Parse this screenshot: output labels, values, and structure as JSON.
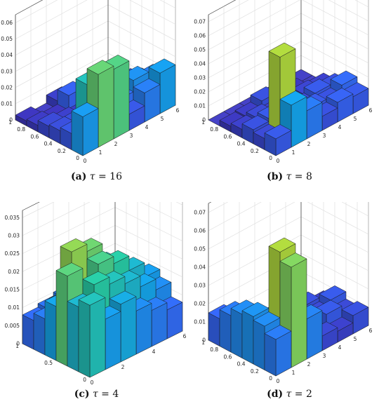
{
  "chart_data": [
    {
      "type": "bar3d",
      "caption": {
        "tag": "(a)",
        "symbol": "τ",
        "rest": " = 16"
      },
      "zticks": [
        "0",
        "0.01",
        "0.02",
        "0.03",
        "0.04",
        "0.05",
        "0.06"
      ],
      "zlim": [
        0,
        0.065
      ],
      "yticks": [
        "0",
        "0.2",
        "0.4",
        "0.6",
        "0.8",
        "1"
      ],
      "xticks": [
        "0",
        "1",
        "2",
        "3",
        "4",
        "5",
        "6"
      ],
      "bars": [
        {
          "i": 1,
          "j": 1,
          "v": 0.024
        },
        {
          "i": 1,
          "j": 2,
          "v": 0.01
        },
        {
          "i": 1,
          "j": 3,
          "v": 0.008
        },
        {
          "i": 1,
          "j": 4,
          "v": 0.007
        },
        {
          "i": 1,
          "j": 5,
          "v": 0.004
        },
        {
          "i": 1,
          "j": 6,
          "v": 0.003
        },
        {
          "i": 2,
          "j": 1,
          "v": 0.045
        },
        {
          "i": 2,
          "j": 2,
          "v": 0.035
        },
        {
          "i": 2,
          "j": 3,
          "v": 0.008
        },
        {
          "i": 2,
          "j": 4,
          "v": 0.005
        },
        {
          "i": 2,
          "j": 5,
          "v": 0.003
        },
        {
          "i": 3,
          "j": 1,
          "v": 0.043
        },
        {
          "i": 3,
          "j": 2,
          "v": 0.03
        },
        {
          "i": 3,
          "j": 3,
          "v": 0.006
        },
        {
          "i": 3,
          "j": 4,
          "v": 0.004
        },
        {
          "i": 3,
          "j": 5,
          "v": 0.012
        },
        {
          "i": 3,
          "j": 6,
          "v": 0.005
        },
        {
          "i": 4,
          "j": 1,
          "v": 0.01
        },
        {
          "i": 4,
          "j": 2,
          "v": 0.015
        },
        {
          "i": 4,
          "j": 3,
          "v": 0.007
        },
        {
          "i": 4,
          "j": 4,
          "v": 0.003
        },
        {
          "i": 4,
          "j": 5,
          "v": 0.009
        },
        {
          "i": 5,
          "j": 1,
          "v": 0.018
        },
        {
          "i": 5,
          "j": 2,
          "v": 0.022
        },
        {
          "i": 5,
          "j": 3,
          "v": 0.014
        },
        {
          "i": 5,
          "j": 4,
          "v": 0.006
        },
        {
          "i": 5,
          "j": 5,
          "v": 0.01
        },
        {
          "i": 6,
          "j": 1,
          "v": 0.025
        },
        {
          "i": 6,
          "j": 2,
          "v": 0.018
        },
        {
          "i": 6,
          "j": 3,
          "v": 0.012
        },
        {
          "i": 6,
          "j": 4,
          "v": 0.008
        },
        {
          "i": 6,
          "j": 5,
          "v": 0.005
        },
        {
          "i": 6,
          "j": 6,
          "v": 0.004
        }
      ]
    },
    {
      "type": "bar3d",
      "caption": {
        "tag": "(b)",
        "symbol": "τ",
        "rest": " = 8"
      },
      "zticks": [
        "0",
        "0.01",
        "0.02",
        "0.03",
        "0.04",
        "0.05",
        "0.06",
        "0.07"
      ],
      "zlim": [
        0,
        0.075
      ],
      "yticks": [
        "0",
        "0.2",
        "0.4",
        "0.6",
        "0.8",
        "1"
      ],
      "xticks": [
        "0",
        "1",
        "2",
        "3",
        "4",
        "5",
        "6"
      ],
      "bars": [
        {
          "i": 1,
          "j": 1,
          "v": 0.012
        },
        {
          "i": 1,
          "j": 2,
          "v": 0.008
        },
        {
          "i": 1,
          "j": 3,
          "v": 0.01
        },
        {
          "i": 1,
          "j": 4,
          "v": 0.006
        },
        {
          "i": 1,
          "j": 5,
          "v": 0.004
        },
        {
          "i": 2,
          "j": 1,
          "v": 0.03
        },
        {
          "i": 2,
          "j": 2,
          "v": 0.06
        },
        {
          "i": 2,
          "j": 3,
          "v": 0.012
        },
        {
          "i": 2,
          "j": 4,
          "v": 0.008
        },
        {
          "i": 2,
          "j": 5,
          "v": 0.005
        },
        {
          "i": 3,
          "j": 1,
          "v": 0.02
        },
        {
          "i": 3,
          "j": 2,
          "v": 0.015
        },
        {
          "i": 3,
          "j": 3,
          "v": 0.008
        },
        {
          "i": 3,
          "j": 4,
          "v": 0.006
        },
        {
          "i": 3,
          "j": 5,
          "v": 0.01
        },
        {
          "i": 4,
          "j": 1,
          "v": 0.01
        },
        {
          "i": 4,
          "j": 2,
          "v": 0.012
        },
        {
          "i": 4,
          "j": 3,
          "v": 0.008
        },
        {
          "i": 4,
          "j": 4,
          "v": 0.005
        },
        {
          "i": 5,
          "j": 1,
          "v": 0.014
        },
        {
          "i": 5,
          "j": 2,
          "v": 0.01
        },
        {
          "i": 5,
          "j": 3,
          "v": 0.012
        },
        {
          "i": 5,
          "j": 4,
          "v": 0.007
        },
        {
          "i": 5,
          "j": 5,
          "v": 0.004
        },
        {
          "i": 6,
          "j": 1,
          "v": 0.012
        },
        {
          "i": 6,
          "j": 2,
          "v": 0.016
        },
        {
          "i": 6,
          "j": 3,
          "v": 0.01
        },
        {
          "i": 6,
          "j": 4,
          "v": 0.006
        }
      ]
    },
    {
      "type": "bar3d",
      "caption": {
        "tag": "(c)",
        "symbol": "τ",
        "rest": " = 4"
      },
      "zticks": [
        "0",
        "0.005",
        "0.01",
        "0.015",
        "0.02",
        "0.025",
        "0.03",
        "0.035"
      ],
      "zlim": [
        0,
        0.037
      ],
      "yticks": [
        "0",
        "0.5",
        "1"
      ],
      "xticks": [
        "0",
        "2",
        "4",
        "6"
      ],
      "bars": [
        {
          "i": 1,
          "j": 1,
          "v": 0.02
        },
        {
          "i": 1,
          "j": 2,
          "v": 0.018
        },
        {
          "i": 1,
          "j": 3,
          "v": 0.025
        },
        {
          "i": 1,
          "j": 4,
          "v": 0.015
        },
        {
          "i": 1,
          "j": 5,
          "v": 0.01
        },
        {
          "i": 1,
          "j": 6,
          "v": 0.008
        },
        {
          "i": 2,
          "j": 1,
          "v": 0.014
        },
        {
          "i": 2,
          "j": 2,
          "v": 0.022
        },
        {
          "i": 2,
          "j": 3,
          "v": 0.018
        },
        {
          "i": 2,
          "j": 4,
          "v": 0.028
        },
        {
          "i": 2,
          "j": 5,
          "v": 0.012
        },
        {
          "i": 2,
          "j": 6,
          "v": 0.009
        },
        {
          "i": 3,
          "j": 1,
          "v": 0.016
        },
        {
          "i": 3,
          "j": 2,
          "v": 0.02
        },
        {
          "i": 3,
          "j": 3,
          "v": 0.024
        },
        {
          "i": 3,
          "j": 4,
          "v": 0.026
        },
        {
          "i": 3,
          "j": 5,
          "v": 0.014
        },
        {
          "i": 3,
          "j": 6,
          "v": 0.01
        },
        {
          "i": 4,
          "j": 1,
          "v": 0.012
        },
        {
          "i": 4,
          "j": 2,
          "v": 0.018
        },
        {
          "i": 4,
          "j": 3,
          "v": 0.022
        },
        {
          "i": 4,
          "j": 4,
          "v": 0.02
        },
        {
          "i": 4,
          "j": 5,
          "v": 0.016
        },
        {
          "i": 4,
          "j": 6,
          "v": 0.008
        },
        {
          "i": 5,
          "j": 1,
          "v": 0.01
        },
        {
          "i": 5,
          "j": 2,
          "v": 0.015
        },
        {
          "i": 5,
          "j": 3,
          "v": 0.018
        },
        {
          "i": 5,
          "j": 4,
          "v": 0.016
        },
        {
          "i": 5,
          "j": 5,
          "v": 0.012
        },
        {
          "i": 5,
          "j": 6,
          "v": 0.007
        },
        {
          "i": 6,
          "j": 1,
          "v": 0.008
        },
        {
          "i": 6,
          "j": 2,
          "v": 0.012
        },
        {
          "i": 6,
          "j": 3,
          "v": 0.014
        },
        {
          "i": 6,
          "j": 4,
          "v": 0.012
        },
        {
          "i": 6,
          "j": 5,
          "v": 0.009
        },
        {
          "i": 6,
          "j": 6,
          "v": 0.006
        }
      ]
    },
    {
      "type": "bar3d",
      "caption": {
        "tag": "(d)",
        "symbol": "τ",
        "rest": " = 2"
      },
      "zticks": [
        "0",
        "0.01",
        "0.02",
        "0.03",
        "0.04",
        "0.05",
        "0.06",
        "0.07"
      ],
      "zlim": [
        0,
        0.075
      ],
      "yticks": [
        "0",
        "0.2",
        "0.4",
        "0.6",
        "0.8",
        "1"
      ],
      "xticks": [
        "0",
        "1",
        "2",
        "3",
        "4",
        "5",
        "6"
      ],
      "bars": [
        {
          "i": 1,
          "j": 1,
          "v": 0.02
        },
        {
          "i": 1,
          "j": 2,
          "v": 0.024
        },
        {
          "i": 1,
          "j": 3,
          "v": 0.026
        },
        {
          "i": 1,
          "j": 4,
          "v": 0.024
        },
        {
          "i": 1,
          "j": 5,
          "v": 0.02
        },
        {
          "i": 1,
          "j": 6,
          "v": 0.015
        },
        {
          "i": 2,
          "j": 1,
          "v": 0.055
        },
        {
          "i": 2,
          "j": 2,
          "v": 0.06
        },
        {
          "i": 2,
          "j": 3,
          "v": 0.01
        },
        {
          "i": 2,
          "j": 4,
          "v": 0.008
        },
        {
          "i": 2,
          "j": 5,
          "v": 0.012
        },
        {
          "i": 2,
          "j": 6,
          "v": 0.01
        },
        {
          "i": 3,
          "j": 1,
          "v": 0.022
        },
        {
          "i": 3,
          "j": 2,
          "v": 0.018
        },
        {
          "i": 3,
          "j": 3,
          "v": 0.01
        },
        {
          "i": 3,
          "j": 4,
          "v": 0.006
        },
        {
          "i": 4,
          "j": 1,
          "v": 0.008
        },
        {
          "i": 4,
          "j": 2,
          "v": 0.006
        },
        {
          "i": 4,
          "j": 3,
          "v": 0.01
        },
        {
          "i": 5,
          "j": 1,
          "v": 0.006
        },
        {
          "i": 5,
          "j": 2,
          "v": 0.012
        },
        {
          "i": 5,
          "j": 3,
          "v": 0.008
        },
        {
          "i": 5,
          "j": 4,
          "v": 0.01
        },
        {
          "i": 6,
          "j": 1,
          "v": 0.01
        },
        {
          "i": 6,
          "j": 2,
          "v": 0.008
        },
        {
          "i": 6,
          "j": 3,
          "v": 0.012
        },
        {
          "i": 6,
          "j": 4,
          "v": 0.006
        }
      ]
    }
  ]
}
